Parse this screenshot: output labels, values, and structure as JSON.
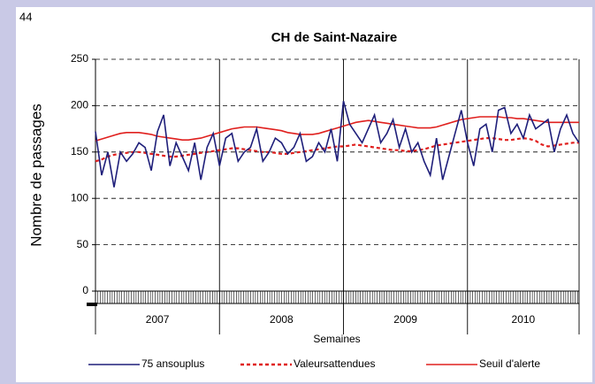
{
  "page_number": "44",
  "chart_data": {
    "type": "line",
    "title": "CH de Saint-Nazaire",
    "ylabel": "Nombre de passages",
    "xlabel": "Semaines",
    "x": [
      2007.0,
      2007.05,
      2007.1,
      2007.15,
      2007.2,
      2007.25,
      2007.3,
      2007.35,
      2007.4,
      2007.45,
      2007.5,
      2007.55,
      2007.6,
      2007.65,
      2007.7,
      2007.75,
      2007.8,
      2007.85,
      2007.9,
      2007.95,
      2008.0,
      2008.05,
      2008.1,
      2008.15,
      2008.2,
      2008.25,
      2008.3,
      2008.35,
      2008.4,
      2008.45,
      2008.5,
      2008.55,
      2008.6,
      2008.65,
      2008.7,
      2008.75,
      2008.8,
      2008.85,
      2008.9,
      2008.95,
      2009.0,
      2009.05,
      2009.1,
      2009.15,
      2009.2,
      2009.25,
      2009.3,
      2009.35,
      2009.4,
      2009.45,
      2009.5,
      2009.55,
      2009.6,
      2009.65,
      2009.7,
      2009.75,
      2009.8,
      2009.85,
      2009.9,
      2009.95,
      2010.0,
      2010.05,
      2010.1,
      2010.15,
      2010.2,
      2010.25,
      2010.3,
      2010.35,
      2010.4,
      2010.45,
      2010.5,
      2010.55,
      2010.6,
      2010.65,
      2010.7,
      2010.75,
      2010.8,
      2010.85,
      2010.9
    ],
    "series": [
      {
        "name": "75 ansouplus",
        "color": "#1f1f7a",
        "style": "solid",
        "values": [
          172,
          125,
          150,
          112,
          150,
          140,
          148,
          160,
          155,
          130,
          172,
          190,
          135,
          160,
          145,
          130,
          160,
          120,
          155,
          170,
          135,
          165,
          170,
          140,
          150,
          155,
          175,
          140,
          150,
          165,
          160,
          148,
          155,
          170,
          140,
          145,
          160,
          150,
          175,
          140,
          205,
          180,
          170,
          160,
          175,
          190,
          160,
          170,
          185,
          155,
          175,
          150,
          160,
          140,
          125,
          165,
          120,
          145,
          170,
          195,
          160,
          135,
          175,
          180,
          150,
          195,
          198,
          170,
          180,
          165,
          190,
          175,
          180,
          185,
          150,
          175,
          190,
          170,
          160
        ]
      },
      {
        "name": "Valeursattendues",
        "color": "#e0201e",
        "style": "dashed",
        "values": [
          140,
          142,
          145,
          147,
          148,
          149,
          150,
          150,
          149,
          148,
          147,
          146,
          145,
          145,
          146,
          147,
          148,
          149,
          150,
          151,
          152,
          153,
          154,
          154,
          153,
          152,
          151,
          150,
          150,
          149,
          148,
          148,
          149,
          150,
          151,
          152,
          153,
          154,
          155,
          156,
          156,
          157,
          158,
          157,
          156,
          155,
          154,
          153,
          152,
          152,
          151,
          151,
          152,
          153,
          155,
          157,
          158,
          159,
          160,
          161,
          162,
          163,
          164,
          165,
          165,
          164,
          163,
          163,
          164,
          165,
          164,
          162,
          158,
          156,
          157,
          158,
          159,
          160,
          160
        ]
      },
      {
        "name": "Seuil d'alerte",
        "color": "#e0201e",
        "style": "solid",
        "values": [
          162,
          164,
          166,
          168,
          170,
          171,
          171,
          171,
          170,
          169,
          167,
          166,
          165,
          164,
          163,
          163,
          164,
          165,
          167,
          169,
          171,
          173,
          175,
          176,
          177,
          177,
          177,
          176,
          175,
          174,
          173,
          171,
          170,
          169,
          169,
          169,
          170,
          172,
          174,
          176,
          178,
          180,
          182,
          183,
          184,
          183,
          182,
          181,
          180,
          179,
          178,
          177,
          176,
          176,
          176,
          177,
          179,
          181,
          183,
          185,
          186,
          187,
          188,
          188,
          188,
          188,
          187,
          187,
          186,
          186,
          185,
          184,
          183,
          182,
          182,
          182,
          182,
          182,
          182
        ]
      }
    ],
    "xlim": [
      2007,
      2010.9
    ],
    "xticks": [
      {
        "value": 2007.5,
        "label": "2007"
      },
      {
        "value": 2008.5,
        "label": "2008"
      },
      {
        "value": 2009.5,
        "label": "2009"
      },
      {
        "value": 2010.45,
        "label": "2010"
      }
    ],
    "year_bounds": [
      2007,
      2008,
      2009,
      2010,
      2010.9
    ],
    "ylim": [
      0,
      250
    ],
    "yticks": [
      0,
      50,
      100,
      150,
      200,
      250
    ],
    "grid": true,
    "legend": "bottom"
  }
}
